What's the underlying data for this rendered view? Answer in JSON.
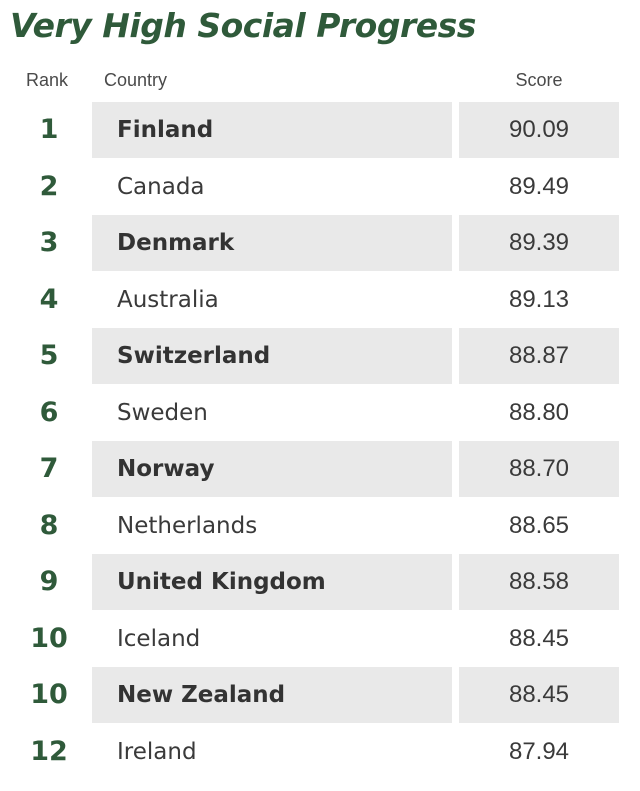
{
  "chart_data": {
    "type": "table",
    "title": "Very High Social Progress",
    "columns": [
      "Rank",
      "Country",
      "Score"
    ],
    "rows": [
      {
        "rank": "1",
        "country": "Finland",
        "score": "90.09"
      },
      {
        "rank": "2",
        "country": "Canada",
        "score": "89.49"
      },
      {
        "rank": "3",
        "country": "Denmark",
        "score": "89.39"
      },
      {
        "rank": "4",
        "country": "Australia",
        "score": "89.13"
      },
      {
        "rank": "5",
        "country": "Switzerland",
        "score": "88.87"
      },
      {
        "rank": "6",
        "country": "Sweden",
        "score": "88.80"
      },
      {
        "rank": "7",
        "country": "Norway",
        "score": "88.70"
      },
      {
        "rank": "8",
        "country": "Netherlands",
        "score": "88.65"
      },
      {
        "rank": "9",
        "country": "United Kingdom",
        "score": "88.58"
      },
      {
        "rank": "10",
        "country": "Iceland",
        "score": "88.45"
      },
      {
        "rank": "10",
        "country": "New Zealand",
        "score": "88.45"
      },
      {
        "rank": "12",
        "country": "Ireland",
        "score": "87.94"
      }
    ]
  },
  "colors": {
    "title": "#2f5a3a",
    "rank": "#2f5a3a",
    "stripe": "#e9e9e9"
  }
}
